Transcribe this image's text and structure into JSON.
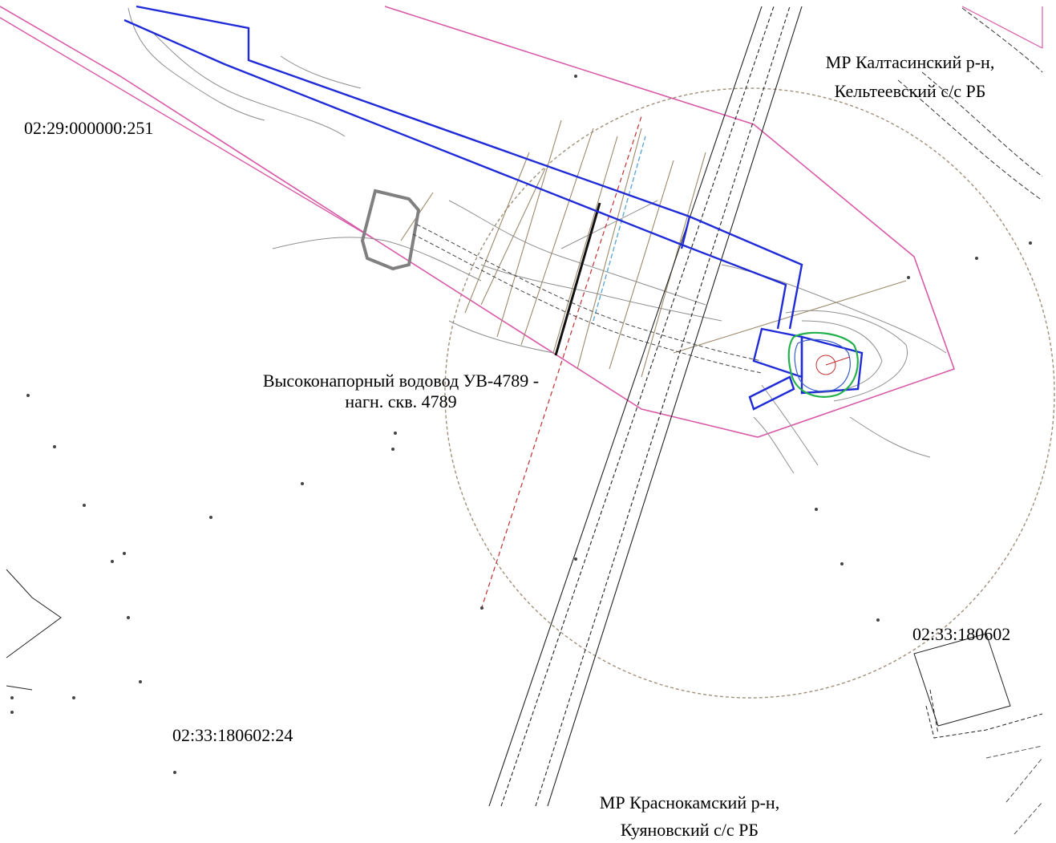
{
  "parcels": {
    "nw": "02:29:000000:251",
    "sw": "02:33:180602:24",
    "se": "02:33:180602"
  },
  "districts": {
    "north": {
      "line1": "МР Калтасинский  р-н,",
      "line2": "Кельтеевский с/с РБ"
    },
    "south": {
      "line1": "МР Краснокамский  р-н,",
      "line2": "Куяновский с/с РБ"
    }
  },
  "pipeline": {
    "line1": "Высоконапорный водовод УВ-4789 -",
    "line2": "нагн. скв. 4789"
  },
  "colors": {
    "pipeline": "#1f2bd6",
    "boundary": "#d85aa8",
    "radius_circle": "#a0907a",
    "contour": "#8f8f8f",
    "well_pad": "#22b14c",
    "road": "#222222"
  }
}
